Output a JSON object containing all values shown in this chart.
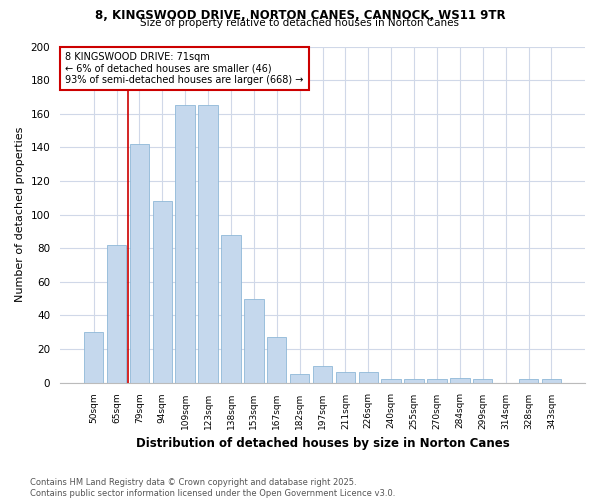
{
  "title1": "8, KINGSWOOD DRIVE, NORTON CANES, CANNOCK, WS11 9TR",
  "title2": "Size of property relative to detached houses in Norton Canes",
  "xlabel": "Distribution of detached houses by size in Norton Canes",
  "ylabel": "Number of detached properties",
  "categories": [
    "50sqm",
    "65sqm",
    "79sqm",
    "94sqm",
    "109sqm",
    "123sqm",
    "138sqm",
    "153sqm",
    "167sqm",
    "182sqm",
    "197sqm",
    "211sqm",
    "226sqm",
    "240sqm",
    "255sqm",
    "270sqm",
    "284sqm",
    "299sqm",
    "314sqm",
    "328sqm",
    "343sqm"
  ],
  "values": [
    30,
    82,
    142,
    108,
    165,
    165,
    88,
    50,
    27,
    5,
    10,
    6,
    6,
    2,
    2,
    2,
    3,
    2,
    0,
    2,
    2
  ],
  "bar_color": "#c5d8ed",
  "bar_edge_color": "#8fb8d8",
  "property_line_x": 1.5,
  "annotation_line1": "8 KINGSWOOD DRIVE: 71sqm",
  "annotation_line2": "← 6% of detached houses are smaller (46)",
  "annotation_line3": "93% of semi-detached houses are larger (668) →",
  "annotation_box_color": "#ffffff",
  "annotation_box_edge": "#cc0000",
  "vline_color": "#cc0000",
  "ylim": [
    0,
    200
  ],
  "yticks": [
    0,
    20,
    40,
    60,
    80,
    100,
    120,
    140,
    160,
    180,
    200
  ],
  "footer": "Contains HM Land Registry data © Crown copyright and database right 2025.\nContains public sector information licensed under the Open Government Licence v3.0.",
  "bg_color": "#ffffff",
  "plot_bg_color": "#ffffff",
  "grid_color": "#d0d8e8"
}
